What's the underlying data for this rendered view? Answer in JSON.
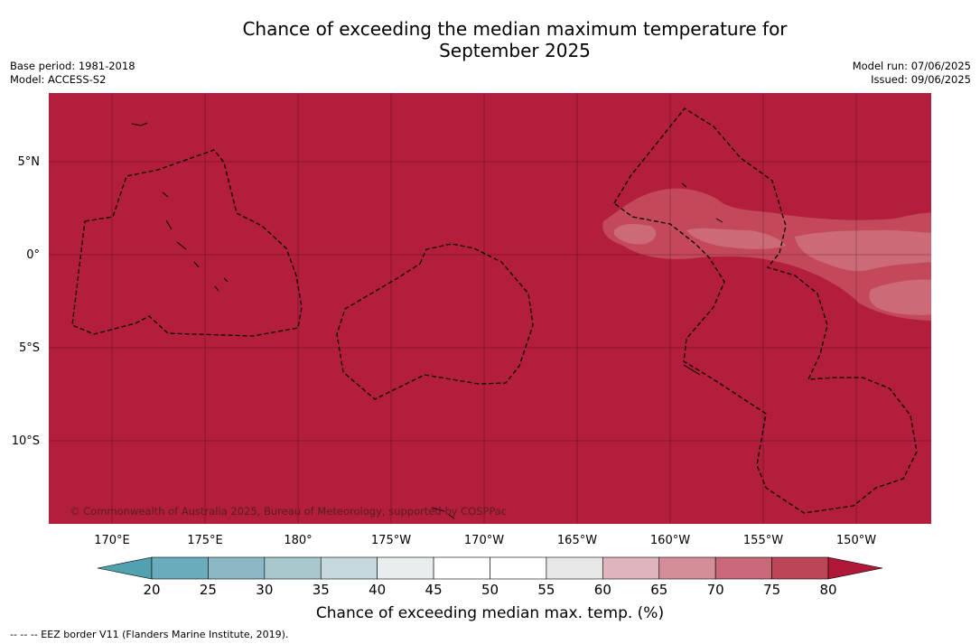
{
  "header": {
    "title_line1": "Chance of exceeding the median maximum temperature for",
    "title_line2": "September 2025",
    "base_period": "Base period: 1981-2018",
    "model": "Model: ACCESS-S2",
    "model_run": "Model run: 07/06/2025",
    "issued": "Issued: 09/06/2025"
  },
  "map": {
    "copyright": "© Commonwealth of Australia 2025, Bureau of Meteorology, supported by COSPPac",
    "lat_labels": [
      "5°N",
      "0°",
      "5°S",
      "10°S"
    ],
    "lon_labels": [
      "170°E",
      "175°E",
      "180°",
      "175°W",
      "170°W",
      "165°W",
      "160°W",
      "155°W",
      "150°W"
    ],
    "dominant_category_percent": 80,
    "colors": {
      "ocean": "#b21e3b",
      "band_75": "#c3495a",
      "band_70": "#cc6a78",
      "border": "#000000"
    }
  },
  "colorbar": {
    "ticks": [
      "20",
      "25",
      "30",
      "35",
      "40",
      "45",
      "50",
      "55",
      "60",
      "65",
      "70",
      "75",
      "80"
    ],
    "colors": [
      "#6aacbb",
      "#8ab9c5",
      "#a8c8ce",
      "#c6d9dc",
      "#e8eef0",
      "#ffffff",
      "#ffffff",
      "#e6e6e6",
      "#deb5bd",
      "#d38e98",
      "#c96878",
      "#bc4658"
    ],
    "under_color": "#52a1b1",
    "over_color": "#b0183a",
    "label": "Chance of exceeding median max. temp. (%)"
  },
  "footnote": "--  --  -- EEZ border V11 (Flanders Marine Institute, 2019)."
}
